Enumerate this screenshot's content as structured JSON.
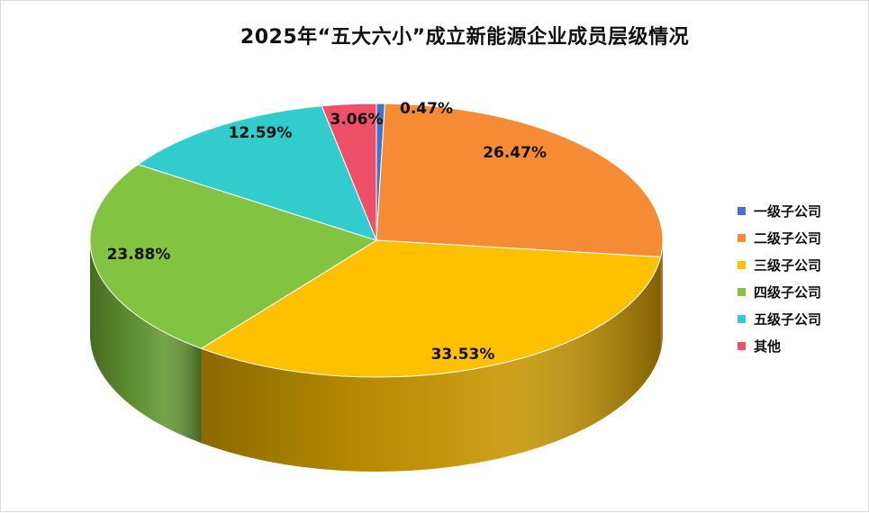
{
  "chart_data": {
    "type": "pie",
    "title": "2025年“五大六小”成立新能源企业成员层级情况",
    "categories": [
      "一级子公司",
      "二级子公司",
      "三级子公司",
      "四级子公司",
      "五级子公司",
      "其他"
    ],
    "values": [
      0.47,
      26.47,
      33.53,
      23.88,
      12.59,
      3.06
    ],
    "labels": [
      "0.47%",
      "26.47%",
      "33.53%",
      "23.88%",
      "12.59%",
      "3.06%"
    ],
    "colors": [
      "#4472c4",
      "#f58c35",
      "#ffc000",
      "#82c341",
      "#33cccc",
      "#ef5069"
    ],
    "legend_position": "right",
    "style": "3d"
  }
}
